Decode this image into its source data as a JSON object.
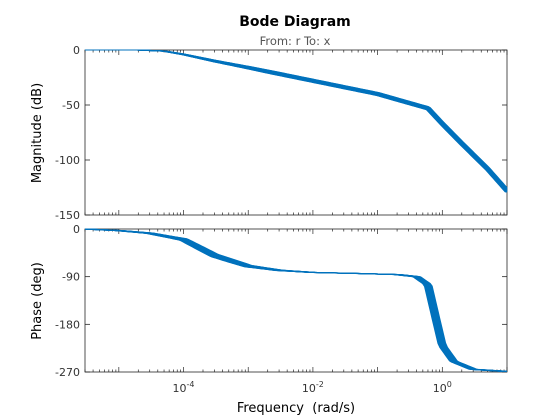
{
  "chart_data": {
    "type": "line",
    "title": "Bode Diagram",
    "subtitle": "From: r  To: x",
    "xlabel": "Frequency  (rad/s)",
    "xscale": "log",
    "xlim": [
      3e-06,
      10
    ],
    "x_ticks": [
      {
        "value": 0.0001,
        "base": "10",
        "exp": "-4"
      },
      {
        "value": 0.01,
        "base": "10",
        "exp": "-2"
      },
      {
        "value": 1,
        "base": "10",
        "exp": "0"
      }
    ],
    "line_color": "#0072bd",
    "grid": false,
    "legend": "none",
    "series_count": 20,
    "panels": [
      {
        "name": "magnitude",
        "ylabel": "Magnitude (dB)",
        "ylim": [
          -150,
          0
        ],
        "y_ticks": [
          0,
          -50,
          -100,
          -150
        ],
        "y_tick_labels": [
          "0",
          "-50",
          "-100",
          "-150"
        ],
        "x": [
          3e-06,
          2e-05,
          5e-05,
          0.0001,
          0.0003,
          0.001,
          0.01,
          0.1,
          0.3,
          0.6,
          1,
          2,
          5,
          10
        ],
        "values": [
          0,
          0,
          -1,
          -4,
          -10,
          -16,
          -28,
          -40,
          -48,
          -53,
          -67,
          -85,
          -108,
          -128
        ],
        "spread": 2.5
      },
      {
        "name": "phase",
        "ylabel": "Phase (deg)",
        "ylim": [
          -270,
          0
        ],
        "y_ticks": [
          0,
          -90,
          -180,
          -270
        ],
        "y_tick_labels": [
          "0",
          "-90",
          "-180",
          "-270"
        ],
        "x": [
          3e-06,
          1e-05,
          3e-05,
          0.0001,
          0.0003,
          0.001,
          0.003,
          0.01,
          0.05,
          0.2,
          0.4,
          0.6,
          0.8,
          1,
          1.5,
          3,
          10
        ],
        "values": [
          0,
          -3,
          -8,
          -20,
          -50,
          -70,
          -78,
          -82,
          -84,
          -86,
          -90,
          -105,
          -170,
          -220,
          -250,
          -265,
          -269
        ],
        "spread": 12
      }
    ]
  }
}
